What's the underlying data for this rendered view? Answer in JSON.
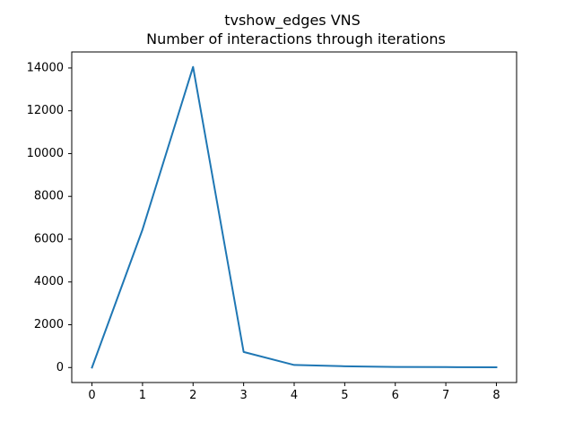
{
  "chart_data": {
    "type": "line",
    "title": "tvshow_edges VNS",
    "subtitle": "Number of interactions through iterations",
    "xlabel": "",
    "ylabel": "",
    "x": [
      0,
      1,
      2,
      3,
      4,
      5,
      6,
      7,
      8
    ],
    "series": [
      {
        "values": [
          0,
          6450,
          14050,
          730,
          120,
          60,
          30,
          20,
          10
        ],
        "color": "#1f77b4"
      }
    ],
    "xlim": [
      -0.4,
      8.4
    ],
    "ylim": [
      -700,
      14750
    ],
    "xticks": [
      0,
      1,
      2,
      3,
      4,
      5,
      6,
      7,
      8
    ],
    "yticks": [
      0,
      2000,
      4000,
      6000,
      8000,
      10000,
      12000,
      14000
    ],
    "xtick_labels": [
      "0",
      "1",
      "2",
      "3",
      "4",
      "5",
      "6",
      "7",
      "8"
    ],
    "ytick_labels": [
      "0",
      "2000",
      "4000",
      "6000",
      "8000",
      "10000",
      "12000",
      "14000"
    ],
    "grid": false,
    "legend": "none"
  }
}
